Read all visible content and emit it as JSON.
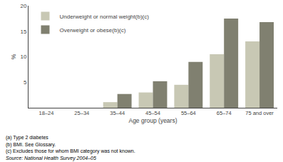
{
  "chart_data": {
    "type": "bar",
    "categories": [
      "18–24",
      "25–34",
      "35–44",
      "45–54",
      "55–64",
      "65–74",
      "75 and over"
    ],
    "series": [
      {
        "name": "Underweight or normal weight(b)(c)",
        "color": "#c8c8b4",
        "values": [
          0,
          0,
          1.1,
          3.0,
          4.5,
          10.5,
          13.0
        ]
      },
      {
        "name": "Overweight or obese(b)(c)",
        "color": "#808070",
        "values": [
          0,
          0,
          2.7,
          5.2,
          9.0,
          17.5,
          16.8
        ]
      }
    ],
    "xlabel": "Age group (years)",
    "ylabel": "%",
    "ylim": [
      0,
      20
    ],
    "yticks": [
      5,
      10,
      15,
      20
    ],
    "grid": false,
    "legend": "upper left",
    "annotations": [
      "(a) Type 2 diabetes",
      "(b) BMI. See Glossary.",
      "(c) Excludes those for whom BMI category was not known.",
      "Source: National Health Survey 2004–05"
    ]
  }
}
